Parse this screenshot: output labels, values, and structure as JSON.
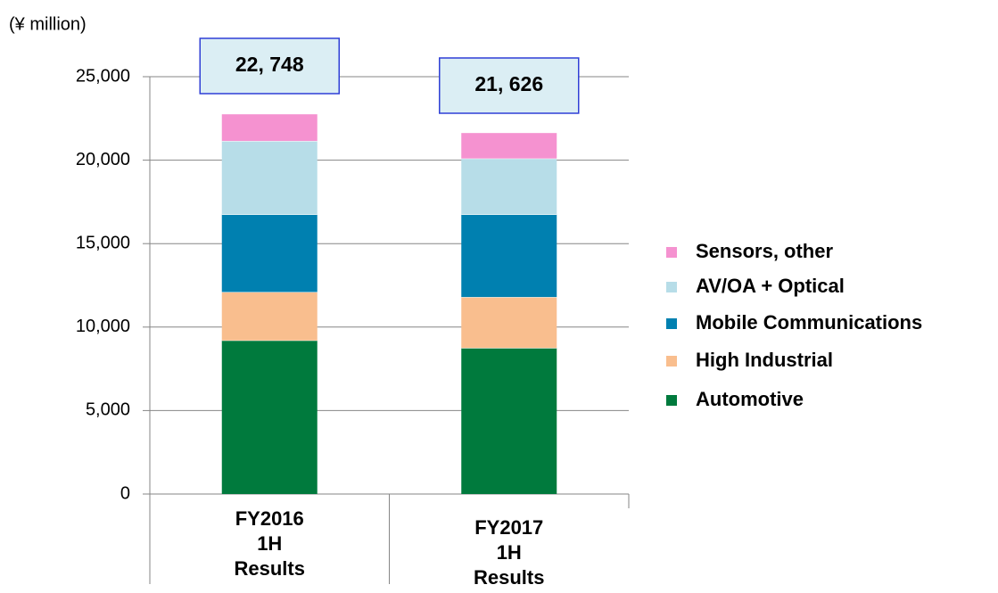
{
  "chart_data": {
    "type": "stacked_bar",
    "y_axis_label": "(¥ million)",
    "categories": [
      "FY2016\n1H\nResults",
      "FY2017\n1H\nResults"
    ],
    "series": [
      {
        "name": "Automotive",
        "color": "#007a3d",
        "values": [
          9200,
          8750
        ]
      },
      {
        "name": "High Industrial",
        "color": "#f9be8e",
        "values": [
          2900,
          3050
        ]
      },
      {
        "name": "Mobile Communications",
        "color": "#0080b0",
        "values": [
          4650,
          4950
        ]
      },
      {
        "name": "AV/OA + Optical",
        "color": "#b7dde8",
        "values": [
          4400,
          3350
        ]
      },
      {
        "name": "Sensors, other",
        "color": "#f592d0",
        "values": [
          1598,
          1526
        ]
      }
    ],
    "totals": [
      22748,
      21626
    ],
    "total_labels": [
      "22, 748",
      "21, 626"
    ],
    "ylim": [
      0,
      25000
    ],
    "yticks": [
      0,
      {
        "value": 5000,
        "label": "5,000"
      },
      {
        "value": 10000,
        "label": "10,000"
      },
      {
        "value": 15000,
        "label": "15,000"
      },
      {
        "value": 20000,
        "label": "20,000"
      },
      {
        "value": 25000,
        "label": "25,000"
      }
    ],
    "grid": true,
    "legend": "right"
  }
}
